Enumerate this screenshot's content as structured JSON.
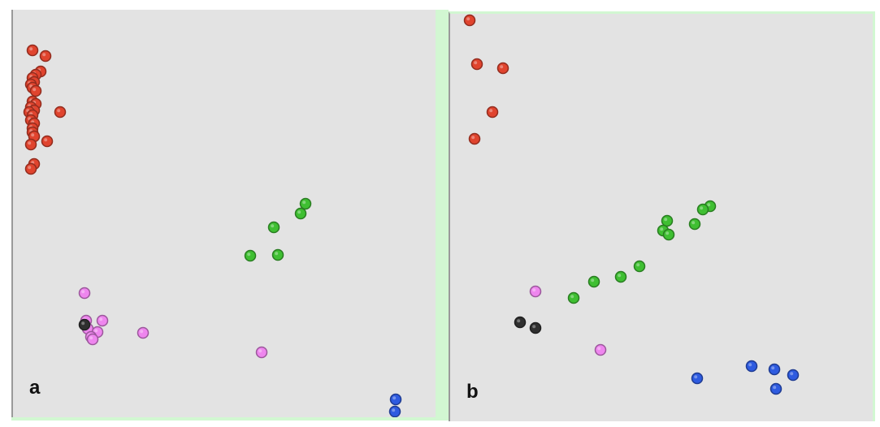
{
  "colors": {
    "red": "#e0442e",
    "green": "#3fbf32",
    "magenta": "#ee86ee",
    "black": "#2f2f2f",
    "blue": "#2e5be0",
    "background": "#e3e3e3",
    "divider": "#d2f7d2"
  },
  "chart_data": [
    {
      "type": "scatter",
      "panel_label": "a",
      "grid": false,
      "legend": "none",
      "xlim": [
        0,
        522
      ],
      "ylim": [
        0,
        502
      ],
      "series": [
        {
          "color_key": "red",
          "points": [
            [
              24,
              50
            ],
            [
              40,
              57
            ],
            [
              34,
              76
            ],
            [
              28,
              80
            ],
            [
              24,
              84
            ],
            [
              26,
              89
            ],
            [
              22,
              92
            ],
            [
              24,
              96
            ],
            [
              28,
              100
            ],
            [
              24,
              113
            ],
            [
              28,
              116
            ],
            [
              22,
              120
            ],
            [
              26,
              124
            ],
            [
              20,
              126
            ],
            [
              24,
              130
            ],
            [
              22,
              136
            ],
            [
              26,
              140
            ],
            [
              24,
              146
            ],
            [
              24,
              151
            ],
            [
              26,
              156
            ],
            [
              22,
              166
            ],
            [
              58,
              126
            ],
            [
              42,
              162
            ],
            [
              26,
              190
            ],
            [
              22,
              196
            ]
          ]
        },
        {
          "color_key": "green",
          "points": [
            [
              360,
              239
            ],
            [
              354,
              251
            ],
            [
              321,
              268
            ],
            [
              292,
              303
            ],
            [
              326,
              302
            ]
          ]
        },
        {
          "color_key": "magenta",
          "points": [
            [
              88,
              349
            ],
            [
              90,
              383
            ],
            [
              110,
              383
            ],
            [
              92,
              393
            ],
            [
              104,
              397
            ],
            [
              96,
              403
            ],
            [
              98,
              406
            ],
            [
              160,
              398
            ],
            [
              306,
              422
            ]
          ]
        },
        {
          "color_key": "black",
          "points": [
            [
              88,
              388
            ]
          ]
        },
        {
          "color_key": "blue",
          "points": [
            [
              471,
              480
            ],
            [
              470,
              495
            ]
          ]
        }
      ]
    },
    {
      "type": "scatter",
      "panel_label": "b",
      "grid": false,
      "legend": "none",
      "xlim": [
        0,
        520
      ],
      "ylim": [
        0,
        502
      ],
      "series": [
        {
          "color_key": "red",
          "points": [
            [
              24,
              8
            ],
            [
              33,
              62
            ],
            [
              65,
              67
            ],
            [
              52,
              121
            ],
            [
              30,
              154
            ]
          ]
        },
        {
          "color_key": "green",
          "points": [
            [
              320,
              237
            ],
            [
              311,
              241
            ],
            [
              301,
              259
            ],
            [
              267,
              255
            ],
            [
              262,
              267
            ],
            [
              269,
              272
            ],
            [
              233,
              311
            ],
            [
              210,
              324
            ],
            [
              177,
              330
            ],
            [
              152,
              350
            ]
          ]
        },
        {
          "color_key": "magenta",
          "points": [
            [
              105,
              342
            ],
            [
              185,
              414
            ]
          ]
        },
        {
          "color_key": "black",
          "points": [
            [
              86,
              380
            ],
            [
              105,
              387
            ]
          ]
        },
        {
          "color_key": "blue",
          "points": [
            [
              304,
              449
            ],
            [
              371,
              434
            ],
            [
              399,
              438
            ],
            [
              422,
              445
            ],
            [
              401,
              462
            ]
          ]
        }
      ]
    }
  ]
}
